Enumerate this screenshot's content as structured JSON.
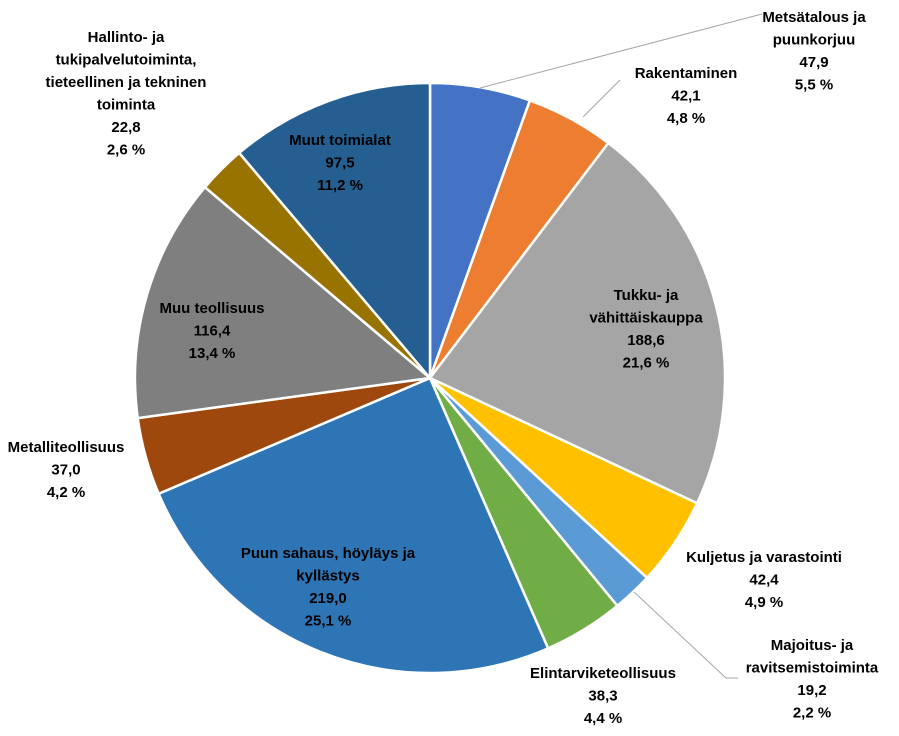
{
  "chart_data": {
    "type": "pie",
    "title": "",
    "start_angle_deg": 0,
    "direction": "clockwise",
    "slices": [
      {
        "name": "Metsätalous ja puunkorjuu",
        "lines": [
          "Metsätalous ja",
          "puunkorjuu"
        ],
        "value_text": "47,9",
        "percent_text": "5,5 %",
        "value": 47.9,
        "color": "#4472c4",
        "label_pos": "outside"
      },
      {
        "name": "Rakentaminen",
        "lines": [
          "Rakentaminen"
        ],
        "value_text": "42,1",
        "percent_text": "4,8 %",
        "value": 42.1,
        "color": "#ed7d31",
        "label_pos": "outside"
      },
      {
        "name": "Tukku- ja vähittäiskauppa",
        "lines": [
          "Tukku- ja",
          "vähittäiskauppa"
        ],
        "value_text": "188,6",
        "percent_text": "21,6 %",
        "value": 188.6,
        "color": "#a5a5a5",
        "label_pos": "inside"
      },
      {
        "name": "Kuljetus ja varastointi",
        "lines": [
          "Kuljetus ja varastointi"
        ],
        "value_text": "42,4",
        "percent_text": "4,9 %",
        "value": 42.4,
        "color": "#ffc000",
        "label_pos": "outside"
      },
      {
        "name": "Majoitus- ja ravitsemistoiminta",
        "lines": [
          "Majoitus- ja",
          "ravitsemistoiminta"
        ],
        "value_text": "19,2",
        "percent_text": "2,2 %",
        "value": 19.2,
        "color": "#5b9bd5",
        "label_pos": "outside"
      },
      {
        "name": "Elintarviketeollisuus",
        "lines": [
          "Elintarviketeollisuus"
        ],
        "value_text": "38,3",
        "percent_text": "4,4 %",
        "value": 38.3,
        "color": "#70ad47",
        "label_pos": "outside"
      },
      {
        "name": "Puun sahaus, höyläys ja kyllästys",
        "lines": [
          "Puun sahaus, höyläys ja",
          "kyllästys"
        ],
        "value_text": "219,0",
        "percent_text": "25,1 %",
        "value": 219.0,
        "color": "#2e75b6",
        "label_pos": "inside"
      },
      {
        "name": "Metalliteollisuus",
        "lines": [
          "Metalliteollisuus"
        ],
        "value_text": "37,0",
        "percent_text": "4,2 %",
        "value": 37.0,
        "color": "#9e480e",
        "label_pos": "outside"
      },
      {
        "name": "Muu teollisuus",
        "lines": [
          "Muu teollisuus"
        ],
        "value_text": "116,4",
        "percent_text": "13,4 %",
        "value": 116.4,
        "color": "#7f7f7f",
        "label_pos": "inside"
      },
      {
        "name": "Hallinto- ja tukipalvelutoiminta, tieteellinen ja tekninen toiminta",
        "lines": [
          "Hallinto- ja",
          "tukipalvelutoiminta,",
          "tieteellinen ja tekninen",
          "toiminta"
        ],
        "value_text": "22,8",
        "percent_text": "2,6 %",
        "value": 22.8,
        "color": "#997300",
        "label_pos": "outside"
      },
      {
        "name": "Muut toimialat",
        "lines": [
          "Muut toimialat"
        ],
        "value_text": "97,5",
        "percent_text": "11,2 %",
        "value": 97.5,
        "color": "#255e91",
        "label_pos": "inside"
      }
    ]
  }
}
